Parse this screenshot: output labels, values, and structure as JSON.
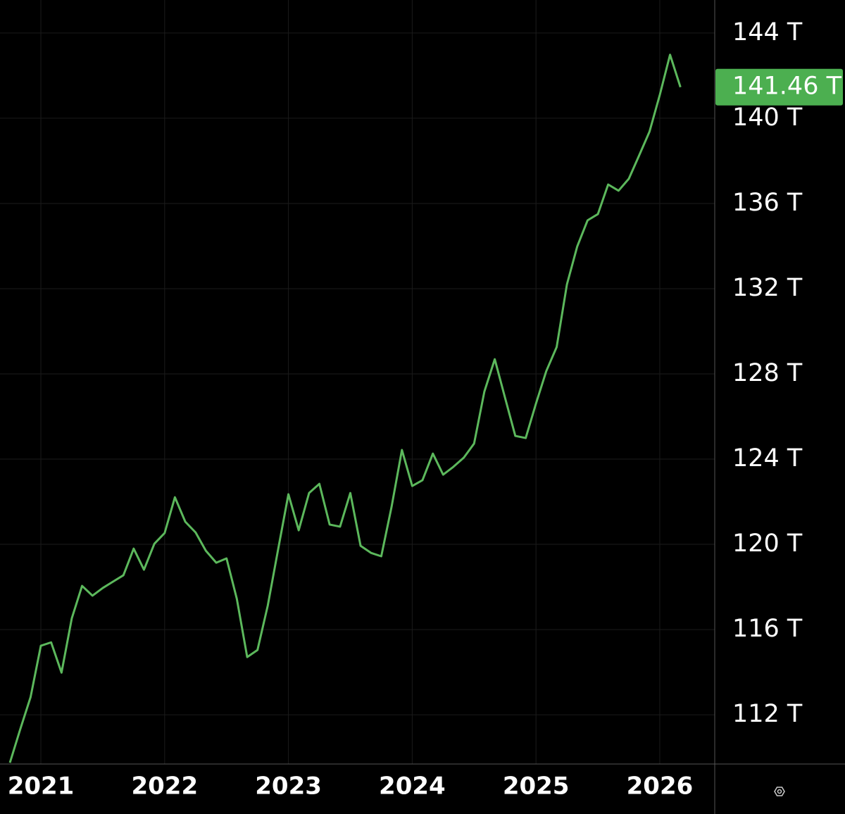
{
  "chart_data": {
    "type": "line",
    "color": "#5cb85c",
    "x": [
      2020.75,
      2020.833,
      2020.917,
      2021,
      2021.083,
      2021.167,
      2021.25,
      2021.333,
      2021.417,
      2021.5,
      2021.583,
      2021.667,
      2021.75,
      2021.833,
      2021.917,
      2022,
      2022.083,
      2022.167,
      2022.25,
      2022.333,
      2022.417,
      2022.5,
      2022.583,
      2022.667,
      2022.75,
      2022.833,
      2022.917,
      2023,
      2023.083,
      2023.167,
      2023.25,
      2023.333,
      2023.417,
      2023.5,
      2023.583,
      2023.667,
      2023.75,
      2023.833,
      2023.917,
      2024,
      2024.083,
      2024.167,
      2024.25,
      2024.333,
      2024.417,
      2024.5,
      2024.583,
      2024.667,
      2024.75,
      2024.833,
      2024.917,
      2025,
      2025.083,
      2025.167,
      2025.25,
      2025.333,
      2025.417,
      2025.5,
      2025.583,
      2025.667,
      2025.75,
      2025.833,
      2025.917,
      2026,
      2026.083,
      2026.167
    ],
    "values": [
      109.75,
      111.31,
      112.83,
      115.24,
      115.4,
      113.98,
      116.53,
      118.05,
      117.59,
      117.95,
      118.25,
      118.55,
      119.8,
      118.81,
      120.03,
      120.53,
      122.21,
      121.06,
      120.56,
      119.7,
      119.14,
      119.34,
      117.45,
      114.71,
      115.04,
      117.12,
      119.77,
      122.35,
      120.66,
      122.41,
      122.84,
      120.93,
      120.83,
      122.41,
      119.93,
      119.6,
      119.44,
      121.75,
      124.43,
      122.74,
      123.01,
      124.26,
      123.27,
      123.64,
      124.07,
      124.73,
      127.17,
      128.69,
      126.88,
      125.09,
      124.99,
      126.61,
      128.13,
      129.26,
      132.2,
      133.98,
      135.21,
      135.5,
      136.89,
      136.6,
      137.16,
      138.25,
      139.37,
      141.09,
      142.98,
      141.46
    ],
    "xlim": [
      2020.67,
      2026.444
    ],
    "xticks": [
      2021,
      2022,
      2023,
      2024,
      2025,
      2026
    ],
    "ylim": [
      109.69,
      145.55
    ],
    "yticks": [
      {
        "value": 112,
        "label": "112 T"
      },
      {
        "value": 116,
        "label": "116 T"
      },
      {
        "value": 120,
        "label": "120 T"
      },
      {
        "value": 124,
        "label": "124 T"
      },
      {
        "value": 128,
        "label": "128 T"
      },
      {
        "value": 132,
        "label": "132 T"
      },
      {
        "value": 136,
        "label": "136 T"
      },
      {
        "value": 140,
        "label": "140 T"
      },
      {
        "value": 144,
        "label": "144 T"
      }
    ],
    "grid": true,
    "price_label": {
      "value": 141.46,
      "label": "141.46 T",
      "color": "#4caf50"
    }
  }
}
